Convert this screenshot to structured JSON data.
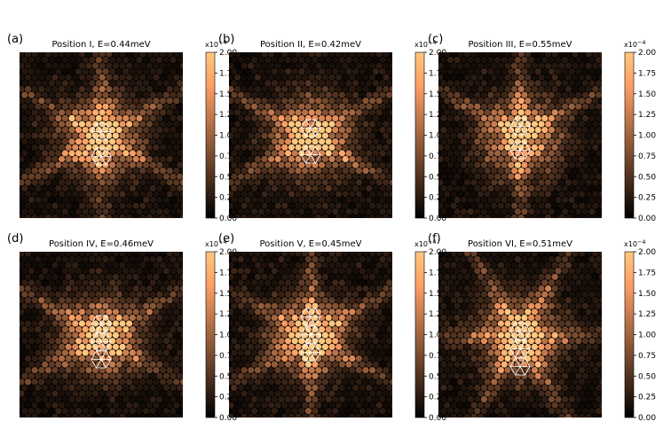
{
  "figure": {
    "colormap": "copper",
    "colorbar": {
      "ticks": [
        "0.00",
        "0.25",
        "0.50",
        "0.75",
        "1.00",
        "1.25",
        "1.50",
        "1.75",
        "2.00"
      ],
      "multiplier": "x10",
      "exponent": "−4",
      "range": [
        0,
        2.0
      ]
    },
    "accent_colors": {
      "low": "#000000",
      "high": "#ffc77f",
      "overlay_lines": "#ffffff"
    }
  },
  "chart_data": [
    {
      "type": "heatmap",
      "panel": "(a)",
      "title": "Position I,  E=0.44meV",
      "impurity_position": "I",
      "energy_meV": 0.44,
      "zlim": [
        0,
        2.0
      ],
      "pattern": "hexagonal dots, star-shaped LDOS"
    },
    {
      "type": "heatmap",
      "panel": "(b)",
      "title": "Position II,  E=0.42meV",
      "impurity_position": "II",
      "energy_meV": 0.42,
      "zlim": [
        0,
        2.0
      ],
      "pattern": "hexagonal dots, star-shaped LDOS"
    },
    {
      "type": "heatmap",
      "panel": "(c)",
      "title": "Position III,  E=0.55meV",
      "impurity_position": "III",
      "energy_meV": 0.55,
      "zlim": [
        0,
        2.0
      ],
      "pattern": "hexagonal dots, star-shaped LDOS"
    },
    {
      "type": "heatmap",
      "panel": "(d)",
      "title": "Position IV,  E=0.46meV",
      "impurity_position": "IV",
      "energy_meV": 0.46,
      "zlim": [
        0,
        2.0
      ],
      "pattern": "hexagonal dots, star-shaped LDOS"
    },
    {
      "type": "heatmap",
      "panel": "(e)",
      "title": "Position V,  E=0.45meV",
      "impurity_position": "V",
      "energy_meV": 0.45,
      "zlim": [
        0,
        2.0
      ],
      "pattern": "hexagonal dots, star-shaped LDOS"
    },
    {
      "type": "heatmap",
      "panel": "(f)",
      "title": "Position VI,  E=0.51meV",
      "impurity_position": "VI",
      "energy_meV": 0.51,
      "zlim": [
        0,
        2.0
      ],
      "pattern": "hexagonal dots, star-shaped LDOS"
    }
  ]
}
